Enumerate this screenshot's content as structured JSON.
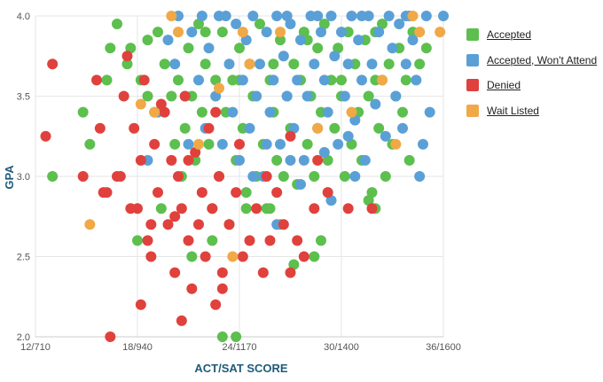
{
  "chart_data": {
    "type": "scatter",
    "xlabel": "ACT/SAT SCORE",
    "ylabel": "GPA",
    "x_tick_labels": [
      "12/710",
      "18/940",
      "24/1170",
      "30/1400",
      "36/1600"
    ],
    "x_tick_values": [
      12,
      18,
      24,
      30,
      36
    ],
    "xlim": [
      12,
      36
    ],
    "y_tick_values": [
      2.0,
      2.5,
      3.0,
      3.5,
      4.0
    ],
    "y_tick_labels": [
      "2.0",
      "2.5",
      "3.0",
      "3.5",
      "4.0"
    ],
    "ylim": [
      2.0,
      4.0
    ],
    "grid": true,
    "legend_position": "right",
    "series": [
      {
        "name": "Accepted",
        "color": "#5cbf4e",
        "points": [
          [
            13,
            3.0
          ],
          [
            14.8,
            3.4
          ],
          [
            15.2,
            3.2
          ],
          [
            16.2,
            3.6
          ],
          [
            16.4,
            3.8
          ],
          [
            16.8,
            3.95
          ],
          [
            17.4,
            3.7
          ],
          [
            17.6,
            3.8
          ],
          [
            18.2,
            3.6
          ],
          [
            18.6,
            3.5
          ],
          [
            18.6,
            3.85
          ],
          [
            19,
            3.4
          ],
          [
            19.2,
            3.9
          ],
          [
            19.6,
            3.7
          ],
          [
            20,
            3.5
          ],
          [
            20.2,
            3.2
          ],
          [
            20.4,
            3.6
          ],
          [
            20.6,
            3.0
          ],
          [
            20.8,
            3.3
          ],
          [
            21,
            3.8
          ],
          [
            21.2,
            3.5
          ],
          [
            21.4,
            3.1
          ],
          [
            21.6,
            3.95
          ],
          [
            21.8,
            3.4
          ],
          [
            22,
            3.7
          ],
          [
            22.2,
            3.2
          ],
          [
            22.4,
            2.8
          ],
          [
            22.6,
            3.6
          ],
          [
            22.8,
            3.0
          ],
          [
            23,
            3.9
          ],
          [
            23.2,
            3.4
          ],
          [
            23.4,
            2.7
          ],
          [
            23.6,
            3.6
          ],
          [
            23.8,
            3.1
          ],
          [
            24,
            3.8
          ],
          [
            24.2,
            3.3
          ],
          [
            24.4,
            2.9
          ],
          [
            24.6,
            3.7
          ],
          [
            24.8,
            3.5
          ],
          [
            25,
            3.0
          ],
          [
            25.2,
            3.95
          ],
          [
            25.4,
            3.2
          ],
          [
            25.6,
            2.8
          ],
          [
            25.8,
            3.6
          ],
          [
            26,
            3.4
          ],
          [
            26.2,
            3.1
          ],
          [
            26.4,
            3.85
          ],
          [
            26.6,
            3.0
          ],
          [
            26.8,
            3.5
          ],
          [
            27,
            3.3
          ],
          [
            27.2,
            3.7
          ],
          [
            27.4,
            2.95
          ],
          [
            27.6,
            3.6
          ],
          [
            27.8,
            3.9
          ],
          [
            28,
            3.2
          ],
          [
            28.2,
            3.5
          ],
          [
            28.4,
            3.0
          ],
          [
            28.6,
            3.8
          ],
          [
            28.8,
            3.4
          ],
          [
            29,
            3.95
          ],
          [
            29.2,
            3.1
          ],
          [
            29.4,
            3.6
          ],
          [
            29.6,
            3.3
          ],
          [
            29.8,
            3.8
          ],
          [
            30,
            3.5
          ],
          [
            30.2,
            3.0
          ],
          [
            30.4,
            3.9
          ],
          [
            30.6,
            3.2
          ],
          [
            30.8,
            3.7
          ],
          [
            31,
            3.4
          ],
          [
            31.2,
            3.1
          ],
          [
            31.4,
            3.85
          ],
          [
            31.6,
            3.5
          ],
          [
            31.8,
            2.9
          ],
          [
            32,
            3.6
          ],
          [
            32.2,
            3.3
          ],
          [
            32.4,
            3.95
          ],
          [
            32.6,
            3.0
          ],
          [
            32.8,
            3.7
          ],
          [
            33,
            3.2
          ],
          [
            33.2,
            3.5
          ],
          [
            33.4,
            3.8
          ],
          [
            33.6,
            3.4
          ],
          [
            33.8,
            3.6
          ],
          [
            34,
            3.1
          ],
          [
            34.2,
            3.9
          ],
          [
            34.6,
            3.7
          ],
          [
            35,
            3.8
          ],
          [
            21.2,
            2.5
          ],
          [
            22.4,
            2.6
          ],
          [
            23,
            2.0
          ],
          [
            23.8,
            2.0
          ],
          [
            27.2,
            2.45
          ],
          [
            28.4,
            2.5
          ],
          [
            31.6,
            2.85
          ],
          [
            32,
            2.8
          ],
          [
            19.4,
            2.8
          ],
          [
            18,
            2.6
          ],
          [
            24.4,
            2.8
          ],
          [
            25.8,
            2.8
          ],
          [
            26.4,
            2.7
          ],
          [
            28.8,
            2.6
          ],
          [
            22,
            3.9
          ],
          [
            24,
            3.6
          ],
          [
            26,
            3.7
          ],
          [
            28,
            3.85
          ],
          [
            30,
            3.6
          ],
          [
            32,
            3.9
          ]
        ]
      },
      {
        "name": "Accepted, Won't Attend",
        "color": "#5aa0d6",
        "points": [
          [
            18.6,
            3.1
          ],
          [
            19.2,
            3.4
          ],
          [
            19.8,
            3.85
          ],
          [
            20.2,
            3.7
          ],
          [
            20.4,
            4.0
          ],
          [
            20.8,
            3.5
          ],
          [
            21,
            3.2
          ],
          [
            21.2,
            3.9
          ],
          [
            21.6,
            3.6
          ],
          [
            22,
            3.3
          ],
          [
            22.2,
            3.8
          ],
          [
            22.6,
            3.5
          ],
          [
            22.8,
            4.0
          ],
          [
            23,
            3.2
          ],
          [
            23.4,
            3.7
          ],
          [
            23.6,
            3.4
          ],
          [
            23.8,
            3.95
          ],
          [
            24,
            3.1
          ],
          [
            24.2,
            3.6
          ],
          [
            24.4,
            3.85
          ],
          [
            24.6,
            3.3
          ],
          [
            24.8,
            4.0
          ],
          [
            25,
            3.5
          ],
          [
            25.2,
            3.7
          ],
          [
            25.4,
            3.0
          ],
          [
            25.6,
            3.9
          ],
          [
            25.8,
            3.4
          ],
          [
            26,
            3.6
          ],
          [
            26.2,
            4.0
          ],
          [
            26.4,
            3.2
          ],
          [
            26.6,
            3.75
          ],
          [
            26.8,
            3.5
          ],
          [
            27,
            3.95
          ],
          [
            27.2,
            3.3
          ],
          [
            27.4,
            3.6
          ],
          [
            27.6,
            3.85
          ],
          [
            27.8,
            3.1
          ],
          [
            28,
            3.5
          ],
          [
            28.2,
            4.0
          ],
          [
            28.4,
            3.7
          ],
          [
            28.6,
            3.3
          ],
          [
            28.8,
            3.9
          ],
          [
            29,
            3.6
          ],
          [
            29.2,
            3.4
          ],
          [
            29.4,
            4.0
          ],
          [
            29.6,
            3.75
          ],
          [
            29.8,
            3.2
          ],
          [
            30,
            3.9
          ],
          [
            30.2,
            3.5
          ],
          [
            30.4,
            3.7
          ],
          [
            30.6,
            4.0
          ],
          [
            30.8,
            3.35
          ],
          [
            31,
            3.85
          ],
          [
            31.2,
            3.6
          ],
          [
            31.4,
            3.1
          ],
          [
            31.6,
            4.0
          ],
          [
            31.8,
            3.7
          ],
          [
            32,
            3.45
          ],
          [
            32.2,
            3.9
          ],
          [
            32.4,
            3.6
          ],
          [
            32.6,
            3.25
          ],
          [
            32.8,
            4.0
          ],
          [
            33,
            3.8
          ],
          [
            33.2,
            3.5
          ],
          [
            33.4,
            3.95
          ],
          [
            33.6,
            3.3
          ],
          [
            33.8,
            3.7
          ],
          [
            34,
            4.0
          ],
          [
            34.2,
            3.85
          ],
          [
            34.4,
            3.6
          ],
          [
            34.6,
            3.0
          ],
          [
            34.8,
            3.2
          ],
          [
            35,
            4.0
          ],
          [
            36,
            4.0
          ],
          [
            35.2,
            3.4
          ],
          [
            26.2,
            2.7
          ],
          [
            29.4,
            2.85
          ],
          [
            24.8,
            3.0
          ],
          [
            27.6,
            2.95
          ],
          [
            30.8,
            3.0
          ],
          [
            21.8,
            4.0
          ],
          [
            23.2,
            4.0
          ],
          [
            26.8,
            4.0
          ],
          [
            28.6,
            4.0
          ],
          [
            31.2,
            4.0
          ],
          [
            33.8,
            4.0
          ],
          [
            25.6,
            3.2
          ],
          [
            27,
            3.1
          ],
          [
            29,
            3.15
          ],
          [
            30.4,
            3.25
          ]
        ]
      },
      {
        "name": "Denied",
        "color": "#e0413c",
        "points": [
          [
            12.6,
            3.25
          ],
          [
            13,
            3.7
          ],
          [
            14.8,
            3.0
          ],
          [
            15.6,
            3.6
          ],
          [
            15.8,
            3.3
          ],
          [
            16,
            2.9
          ],
          [
            16.4,
            2.0
          ],
          [
            16.8,
            3.0
          ],
          [
            17.2,
            3.5
          ],
          [
            17.4,
            3.75
          ],
          [
            17.8,
            3.3
          ],
          [
            18,
            2.8
          ],
          [
            18.2,
            3.1
          ],
          [
            18.4,
            3.6
          ],
          [
            18.6,
            2.6
          ],
          [
            18.8,
            2.5
          ],
          [
            19,
            3.2
          ],
          [
            19.2,
            2.9
          ],
          [
            19.4,
            3.45
          ],
          [
            19.8,
            2.7
          ],
          [
            20,
            3.1
          ],
          [
            20.2,
            2.4
          ],
          [
            20.4,
            3.0
          ],
          [
            20.6,
            2.8
          ],
          [
            20.8,
            3.5
          ],
          [
            21,
            2.6
          ],
          [
            21.2,
            2.3
          ],
          [
            21.4,
            3.15
          ],
          [
            21.6,
            2.7
          ],
          [
            21.8,
            2.9
          ],
          [
            22,
            2.5
          ],
          [
            22.2,
            3.3
          ],
          [
            22.4,
            2.8
          ],
          [
            22.6,
            2.2
          ],
          [
            22.8,
            3.0
          ],
          [
            23,
            2.4
          ],
          [
            23.4,
            2.7
          ],
          [
            23.8,
            2.9
          ],
          [
            24.2,
            2.5
          ],
          [
            24.6,
            2.6
          ],
          [
            25,
            2.8
          ],
          [
            25.4,
            2.4
          ],
          [
            25.8,
            2.6
          ],
          [
            26.2,
            2.9
          ],
          [
            26.6,
            2.7
          ],
          [
            27,
            2.4
          ],
          [
            27.4,
            2.6
          ],
          [
            27.8,
            2.5
          ],
          [
            28.4,
            2.8
          ],
          [
            29.2,
            2.9
          ],
          [
            30.4,
            2.8
          ],
          [
            31.8,
            2.8
          ],
          [
            18.2,
            2.2
          ],
          [
            20.6,
            2.1
          ],
          [
            23,
            2.3
          ],
          [
            17,
            3.0
          ],
          [
            16.2,
            2.9
          ],
          [
            19.6,
            3.4
          ],
          [
            21,
            3.1
          ],
          [
            22.6,
            3.4
          ],
          [
            24,
            3.2
          ],
          [
            25.6,
            3.0
          ],
          [
            27,
            3.25
          ],
          [
            28.6,
            3.1
          ],
          [
            17.6,
            2.8
          ],
          [
            18.8,
            2.7
          ],
          [
            20.2,
            2.75
          ]
        ]
      },
      {
        "name": "Wait Listed",
        "color": "#f0a946",
        "points": [
          [
            15.2,
            2.7
          ],
          [
            18.2,
            3.45
          ],
          [
            19,
            3.4
          ],
          [
            20.4,
            3.9
          ],
          [
            21.6,
            3.2
          ],
          [
            22.8,
            3.55
          ],
          [
            23.6,
            2.5
          ],
          [
            24.6,
            3.7
          ],
          [
            26.4,
            3.9
          ],
          [
            28.6,
            3.3
          ],
          [
            30.6,
            3.4
          ],
          [
            32.4,
            3.6
          ],
          [
            33.2,
            3.2
          ],
          [
            34.6,
            3.9
          ],
          [
            35.8,
            3.9
          ],
          [
            34.2,
            4.0
          ],
          [
            20,
            4.0
          ],
          [
            24.2,
            3.9
          ]
        ]
      }
    ]
  }
}
